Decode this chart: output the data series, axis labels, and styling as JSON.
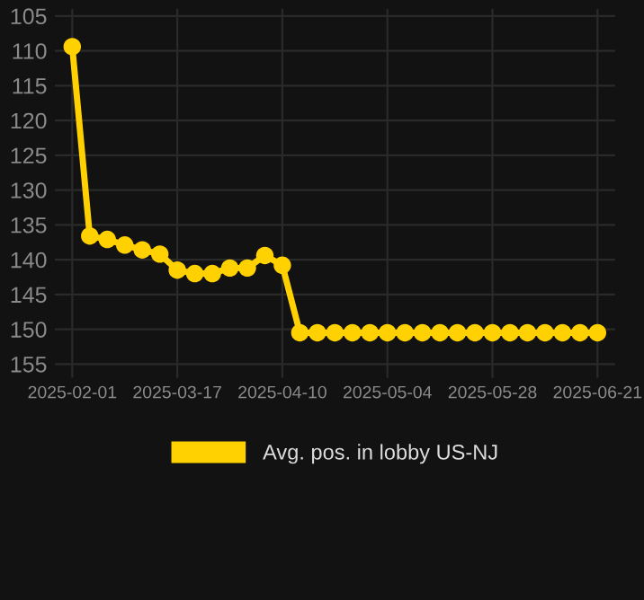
{
  "chart_data": {
    "type": "line",
    "categories": [
      "2025-02-01",
      null,
      null,
      null,
      null,
      null,
      "2025-03-17",
      null,
      null,
      null,
      null,
      null,
      "2025-04-10",
      null,
      null,
      null,
      null,
      null,
      "2025-05-04",
      null,
      null,
      null,
      null,
      null,
      "2025-05-28",
      null,
      null,
      null,
      null,
      null,
      "2025-06-21"
    ],
    "series": [
      {
        "name": "Avg. pos. in lobby US-NJ",
        "color": "#ffd100",
        "values": [
          109.4,
          136.6,
          137.1,
          137.9,
          138.6,
          139.2,
          141.5,
          142.0,
          142.0,
          141.2,
          141.2,
          139.4,
          140.8,
          150.5,
          150.5,
          150.5,
          150.5,
          150.5,
          150.5,
          150.5,
          150.5,
          150.5,
          150.5,
          150.5,
          150.5,
          150.5,
          150.5,
          150.5,
          150.5,
          150.5,
          150.5
        ]
      }
    ],
    "ylim": [
      157,
      104
    ],
    "yticks": [
      105,
      110,
      115,
      120,
      125,
      130,
      135,
      140,
      145,
      150,
      155
    ],
    "grid": true,
    "legend": "bottom",
    "marker": "circle",
    "line_style": "solid"
  }
}
